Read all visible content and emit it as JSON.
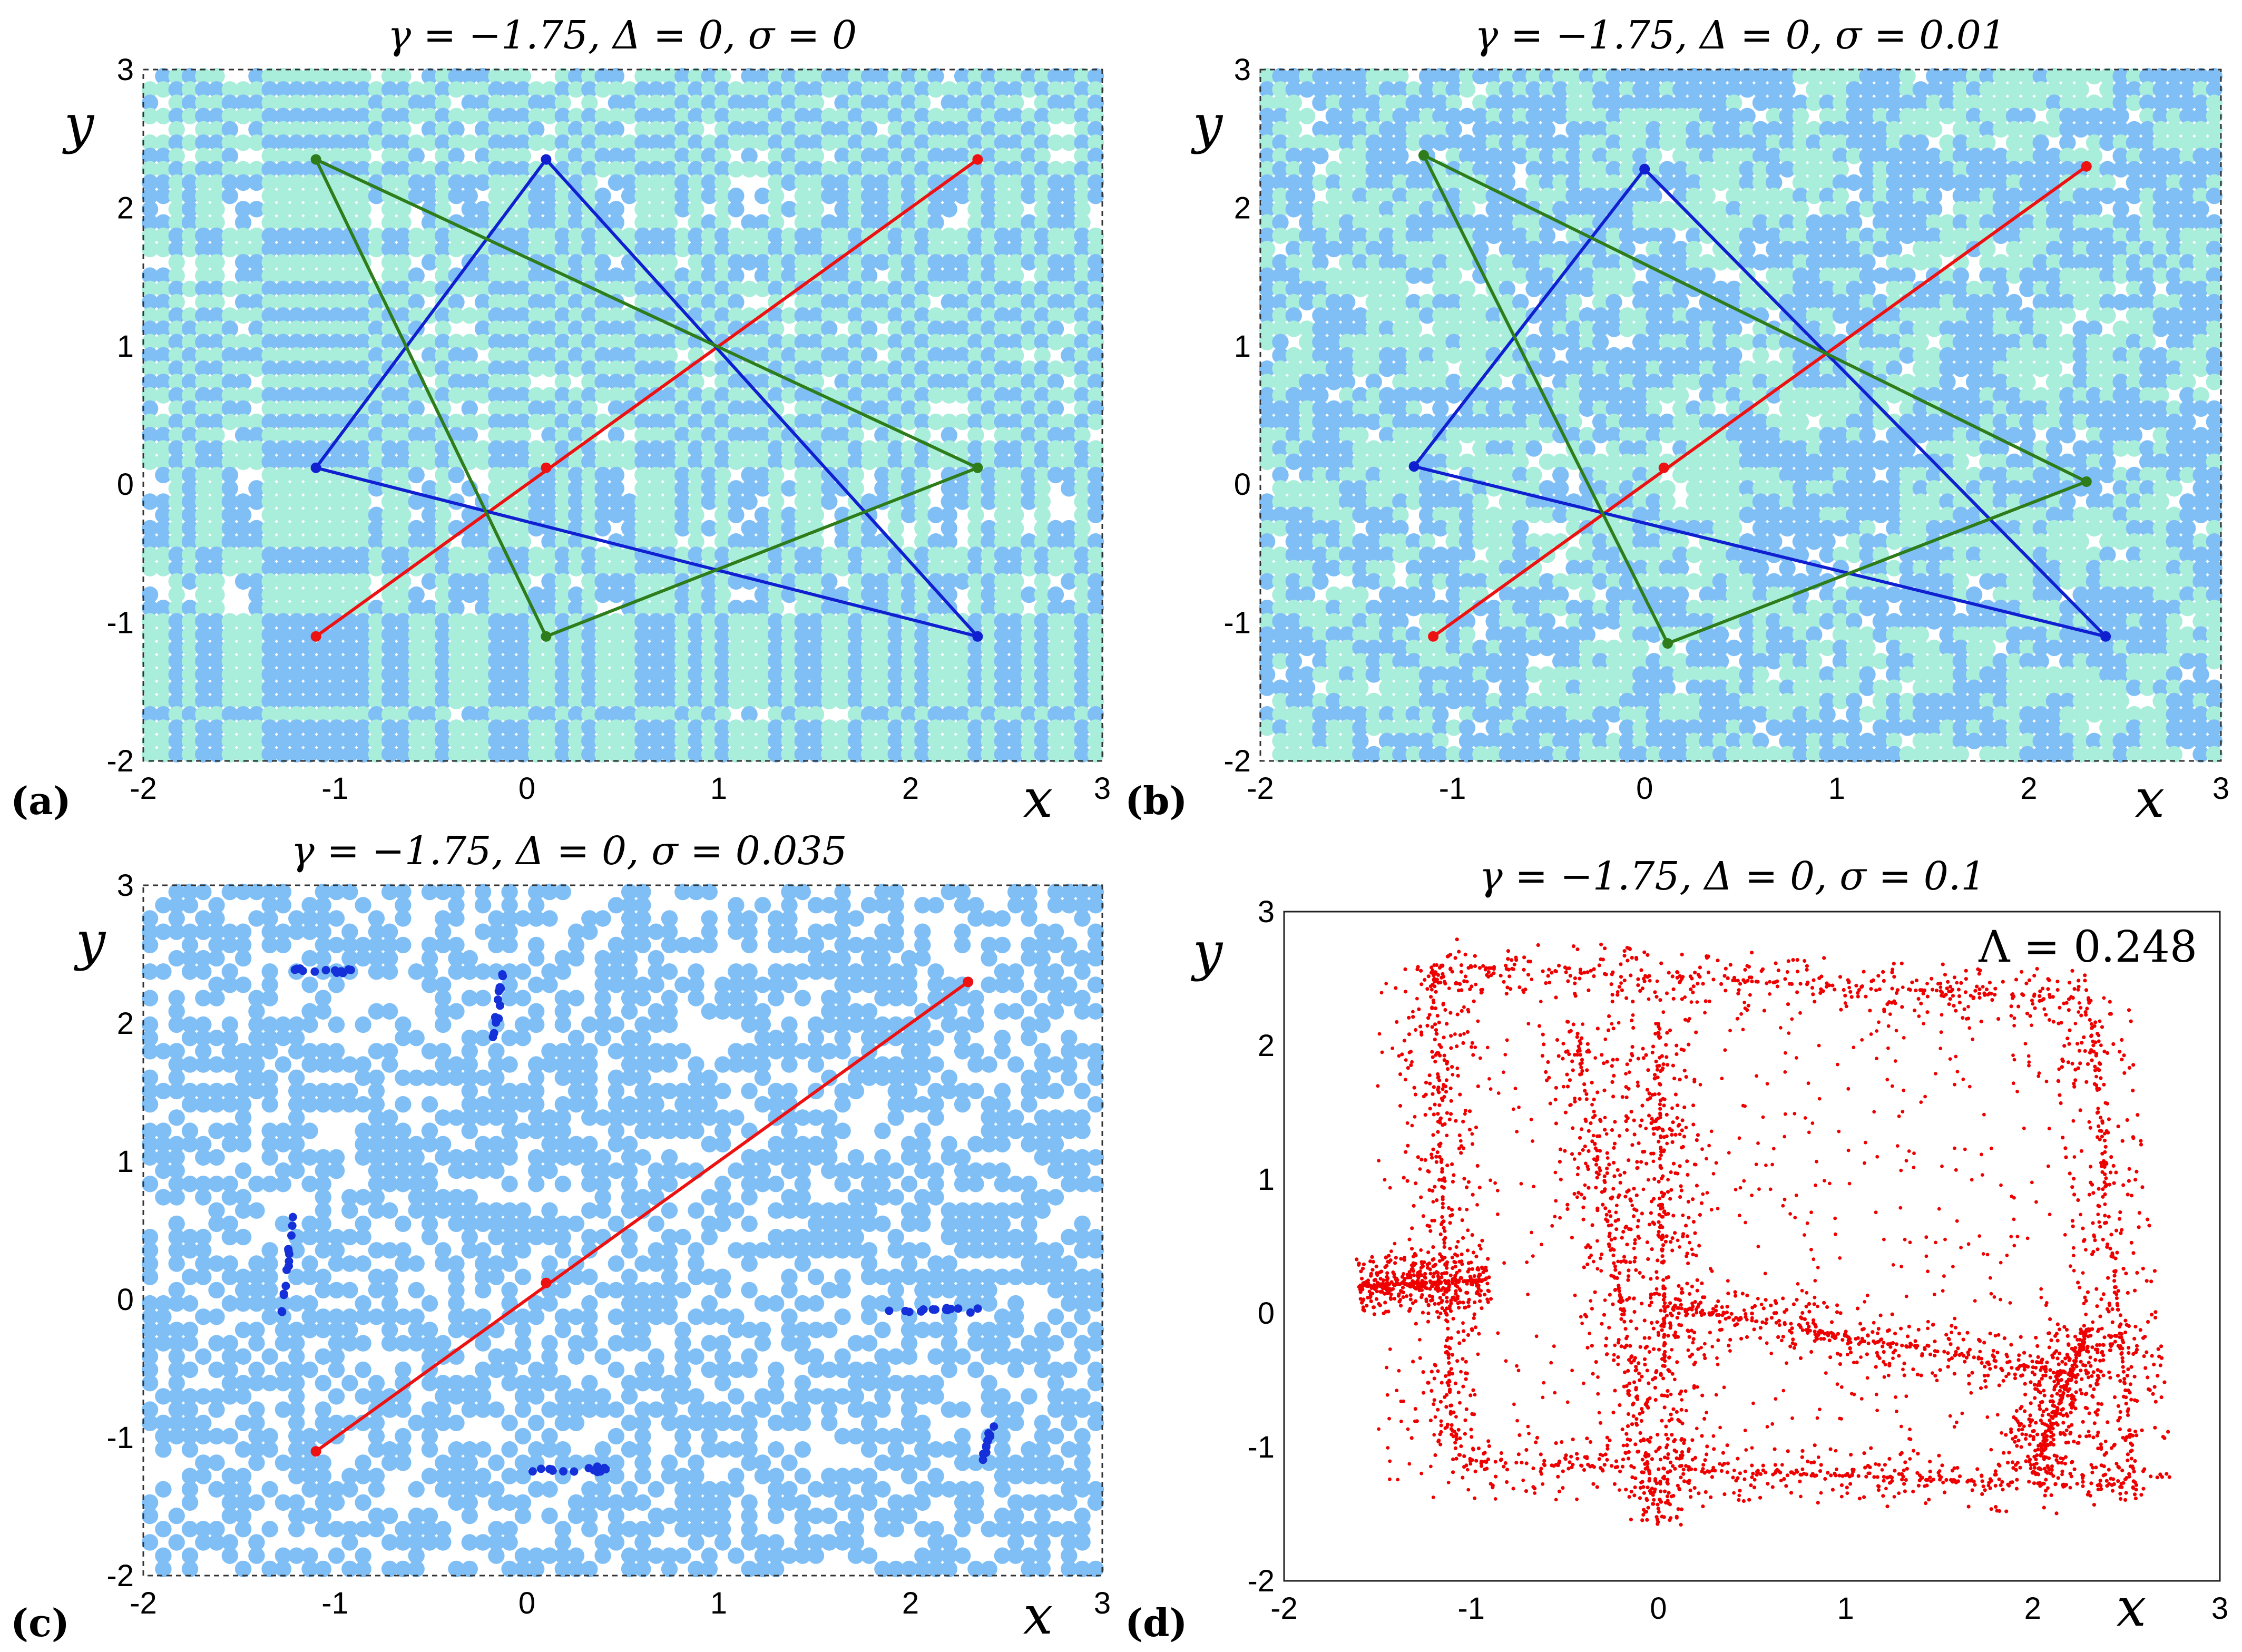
{
  "colors": {
    "dot_blue": "#7fbff5",
    "dot_cyan": "#a9eddb",
    "orbit_red": "#ee1111",
    "orbit_blue": "#1020d0",
    "orbit_green": "#2e7d1a",
    "cluster_blue": "#1530d8",
    "chaos_red": "#ee0000"
  },
  "chart_data": [
    {
      "panel": "(a)",
      "type": "scatter",
      "title": "γ = −1.75, Δ = 0, σ = 0",
      "xlabel": "x",
      "ylabel": "y",
      "xlim": [
        -2,
        3
      ],
      "ylim": [
        -2,
        3
      ],
      "xticks": [
        "-2",
        "-1",
        "0",
        "1",
        "2",
        "3"
      ],
      "yticks": [
        "-2",
        "-1",
        "0",
        "1",
        "2",
        "3"
      ],
      "background_basins": "grid of basin points in two colors (light blue and light cyan), regular stripes",
      "orbits": [
        {
          "name": "period-2 orbit",
          "color": "red",
          "points": [
            [
              -1.1,
              -1.1
            ],
            [
              2.35,
              2.35
            ]
          ]
        },
        {
          "name": "fixed point",
          "color": "red",
          "points": [
            [
              0.1,
              0.12
            ]
          ]
        },
        {
          "name": "blue triangle",
          "color": "blue",
          "closed": true,
          "points": [
            [
              0.1,
              2.35
            ],
            [
              2.35,
              -1.1
            ],
            [
              -1.1,
              0.12
            ]
          ]
        },
        {
          "name": "green triangle",
          "color": "green",
          "closed": true,
          "points": [
            [
              -1.1,
              2.35
            ],
            [
              2.35,
              0.12
            ],
            [
              0.1,
              -1.1
            ]
          ]
        }
      ]
    },
    {
      "panel": "(b)",
      "type": "scatter",
      "title": "γ = −1.75, Δ = 0, σ = 0.01",
      "xlabel": "x",
      "ylabel": "y",
      "xlim": [
        -2,
        3
      ],
      "ylim": [
        -2,
        3
      ],
      "xticks": [
        "-2",
        "-1",
        "0",
        "1",
        "2",
        "3"
      ],
      "yticks": [
        "-2",
        "-1",
        "0",
        "1",
        "2",
        "3"
      ],
      "background_basins": "grid of basin points in two colors, irregular patches",
      "orbits": [
        {
          "name": "period-2 orbit",
          "color": "red",
          "points": [
            [
              -1.1,
              -1.1
            ],
            [
              2.3,
              2.3
            ]
          ]
        },
        {
          "name": "fixed point",
          "color": "red",
          "points": [
            [
              0.1,
              0.12
            ]
          ]
        },
        {
          "name": "blue triangle",
          "color": "blue",
          "closed": true,
          "points": [
            [
              0.0,
              2.28
            ],
            [
              2.4,
              -1.1
            ],
            [
              -1.2,
              0.13
            ]
          ]
        },
        {
          "name": "green triangle",
          "color": "green",
          "closed": true,
          "points": [
            [
              -1.15,
              2.38
            ],
            [
              2.3,
              0.02
            ],
            [
              0.12,
              -1.15
            ]
          ]
        }
      ]
    },
    {
      "panel": "(c)",
      "type": "scatter",
      "title": "γ = −1.75, Δ = 0, σ = 0.035",
      "xlabel": "x",
      "ylabel": "y",
      "xlim": [
        -2,
        3
      ],
      "ylim": [
        -2,
        3
      ],
      "xticks": [
        "-2",
        "-1",
        "0",
        "1",
        "2",
        "3"
      ],
      "yticks": [
        "-2",
        "-1",
        "0",
        "1",
        "2",
        "3"
      ],
      "background_basins": "scattered single-color basin points",
      "orbits": [
        {
          "name": "period-2 orbit",
          "color": "red",
          "points": [
            [
              -1.1,
              -1.1
            ],
            [
              2.3,
              2.3
            ]
          ]
        },
        {
          "name": "fixed point",
          "color": "red",
          "points": [
            [
              0.1,
              0.12
            ]
          ]
        }
      ],
      "noisy_clusters": [
        {
          "center": [
            -1.1,
            2.38
          ],
          "spread": [
            0.18,
            0.02
          ]
        },
        {
          "center": [
            -0.15,
            2.1
          ],
          "spread": [
            0.04,
            0.4
          ]
        },
        {
          "center": [
            -1.25,
            0.25
          ],
          "spread": [
            0.03,
            0.35
          ]
        },
        {
          "center": [
            2.1,
            -0.08
          ],
          "spread": [
            0.25,
            0.02
          ]
        },
        {
          "center": [
            0.2,
            -1.23
          ],
          "spread": [
            0.22,
            0.02
          ]
        },
        {
          "center": [
            2.4,
            -1.05
          ],
          "spread": [
            0.03,
            0.15
          ]
        }
      ]
    },
    {
      "panel": "(d)",
      "type": "scatter",
      "title": "γ = −1.75, Δ = 0, σ = 0.1",
      "annotation": "Λ = 0.248",
      "xlabel": "x",
      "ylabel": "y",
      "xlim": [
        -2,
        3
      ],
      "ylim": [
        -2,
        3
      ],
      "xticks": [
        "-2",
        "-1",
        "0",
        "1",
        "2",
        "3"
      ],
      "yticks": [
        "-2",
        "-1",
        "0",
        "1",
        "2",
        "3"
      ],
      "attractor": "noise-induced chaotic attractor (red points) spread over quadrilateral bands",
      "bands": [
        [
          [
            -1.2,
            2.6
          ],
          [
            2.3,
            2.35
          ]
        ],
        [
          [
            2.3,
            2.35
          ],
          [
            2.55,
            -1.4
          ]
        ],
        [
          [
            -1.1,
            -1.1
          ],
          [
            2.55,
            -1.3
          ]
        ],
        [
          [
            -1.2,
            2.6
          ],
          [
            -1.1,
            -1.1
          ]
        ],
        [
          [
            -0.45,
            2.2
          ],
          [
            0.0,
            -1.6
          ]
        ],
        [
          [
            0.0,
            2.2
          ],
          [
            0.05,
            -1.5
          ]
        ],
        [
          [
            0.05,
            0.05
          ],
          [
            2.2,
            -0.45
          ]
        ],
        [
          [
            -1.6,
            0.2
          ],
          [
            -0.9,
            0.25
          ]
        ],
        [
          [
            2.0,
            -1.2
          ],
          [
            2.3,
            -0.1
          ]
        ]
      ]
    }
  ],
  "panel_labels": [
    "(a)",
    "(b)",
    "(c)",
    "(d)"
  ]
}
